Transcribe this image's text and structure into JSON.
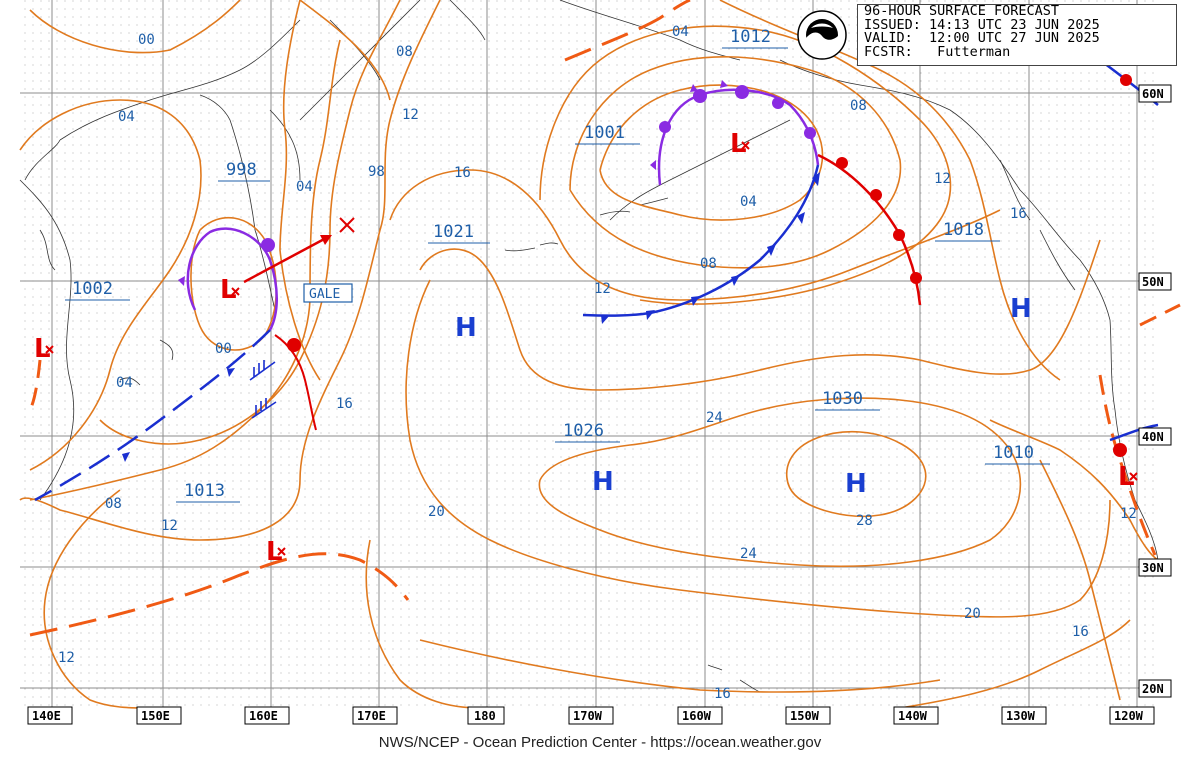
{
  "header": {
    "line1": "96-HOUR SURFACE FORECAST",
    "line2": "ISSUED: 14:13 UTC 23 JUN 2025",
    "line3": "VALID:  12:00 UTC 27 JUN 2025",
    "line4": "FCSTR:   Futterman"
  },
  "logo": {
    "icon": "noaa-logo-icon"
  },
  "footer": "NWS/NCEP - Ocean Prediction Center - https://ocean.weather.gov",
  "longitudes": [
    "140E",
    "150E",
    "160E",
    "170E",
    "180",
    "170W",
    "160W",
    "150W",
    "140W",
    "130W",
    "120W"
  ],
  "latitudes": [
    "60N",
    "50N",
    "40N",
    "30N",
    "20N"
  ],
  "highs": [
    {
      "label": "H",
      "pressure": "1021"
    },
    {
      "label": "H",
      "pressure": "1026"
    },
    {
      "label": "H",
      "pressure": "1030"
    },
    {
      "label": "H",
      "pressure": "1018"
    },
    {
      "label": "H",
      "pressure": "1010"
    }
  ],
  "lows": [
    {
      "label": "L",
      "pressure": "998",
      "warning": "GALE"
    },
    {
      "label": "L",
      "pressure": "1001"
    },
    {
      "label": "L",
      "pressure": "1002"
    },
    {
      "label": "L",
      "pressure": "1013"
    },
    {
      "label": "L",
      "pressure": "1012"
    }
  ],
  "isobar_labels": [
    "00",
    "04",
    "08",
    "12",
    "16",
    "98",
    "04",
    "08",
    "12",
    "16",
    "20",
    "24",
    "28",
    "16",
    "12",
    "00",
    "04",
    "08",
    "12",
    "16",
    "20",
    "24",
    "16",
    "12"
  ],
  "colors": {
    "isobar": "#e07a1f",
    "label": "#1f5fa8",
    "high": "#1a3fd0",
    "low": "#e00000",
    "cold_front": "#1a2fd0",
    "warm_front": "#e00000",
    "occluded_front": "#8a2be2",
    "trough": "#f05a14"
  }
}
